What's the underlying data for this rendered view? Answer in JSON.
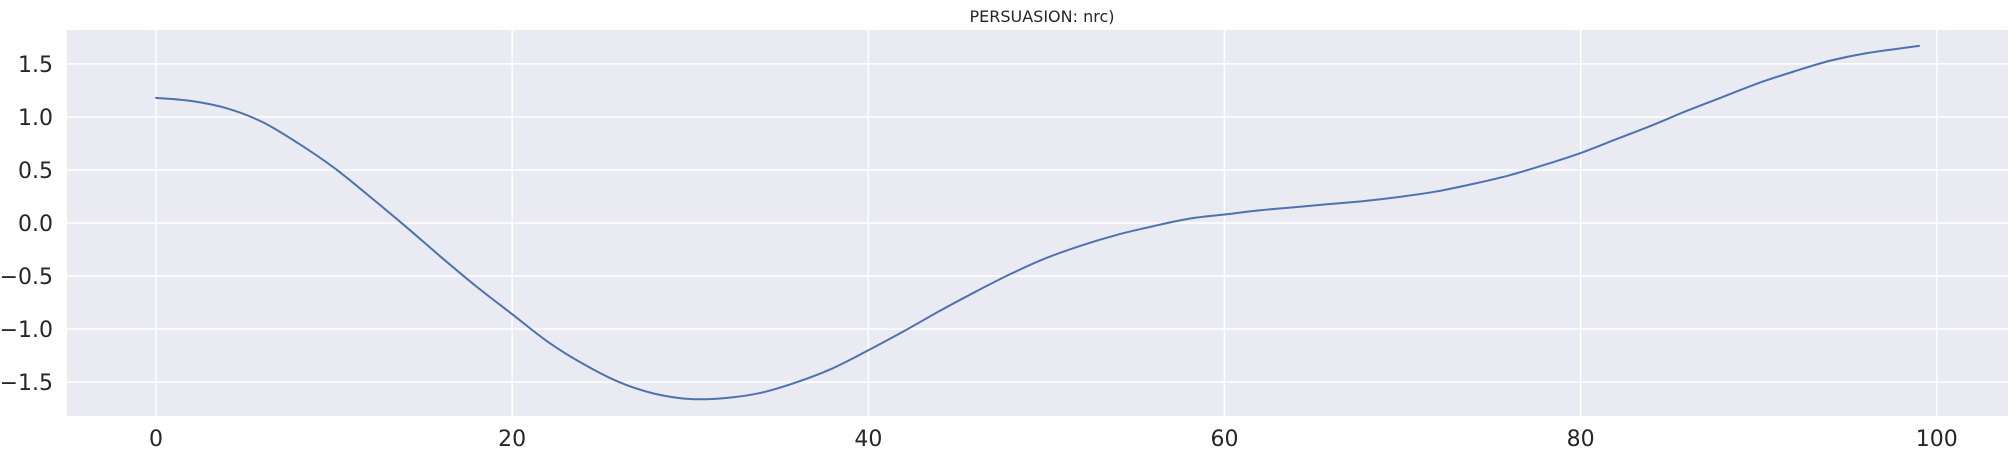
{
  "chart_data": {
    "type": "line",
    "title": "PERSUASION: nrc)",
    "xlabel": "",
    "ylabel": "",
    "xlim": [
      -5,
      104
    ],
    "ylim": [
      -1.82,
      1.82
    ],
    "x_ticks": [
      0,
      20,
      40,
      60,
      80,
      100
    ],
    "y_ticks": [
      -1.5,
      -1.0,
      -0.5,
      0.0,
      0.5,
      1.0,
      1.5
    ],
    "x_tick_labels": [
      "0",
      "20",
      "40",
      "60",
      "80",
      "100"
    ],
    "y_tick_labels": [
      "−1.5",
      "−1.0",
      "−0.5",
      "0.0",
      "0.5",
      "1.0",
      "1.5"
    ],
    "grid": true,
    "colors": {
      "background": "#eaeaf2",
      "grid": "#ffffff",
      "line": "#4c72b0"
    },
    "series": [
      {
        "x": [
          0,
          2,
          4,
          6,
          8,
          10,
          12,
          14,
          16,
          18,
          20,
          22,
          24,
          26,
          28,
          30,
          32,
          34,
          36,
          38,
          40,
          42,
          44,
          46,
          48,
          50,
          52,
          54,
          56,
          58,
          60,
          62,
          64,
          66,
          68,
          70,
          72,
          74,
          76,
          78,
          80,
          82,
          84,
          86,
          88,
          90,
          92,
          94,
          96,
          99
        ],
        "y": [
          1.18,
          1.15,
          1.08,
          0.95,
          0.75,
          0.52,
          0.25,
          -0.03,
          -0.32,
          -0.6,
          -0.86,
          -1.12,
          -1.33,
          -1.5,
          -1.61,
          -1.66,
          -1.65,
          -1.6,
          -1.5,
          -1.37,
          -1.2,
          -1.02,
          -0.83,
          -0.65,
          -0.48,
          -0.33,
          -0.21,
          -0.11,
          -0.03,
          0.04,
          0.08,
          0.12,
          0.15,
          0.18,
          0.21,
          0.25,
          0.3,
          0.37,
          0.45,
          0.55,
          0.66,
          0.79,
          0.92,
          1.06,
          1.19,
          1.32,
          1.43,
          1.53,
          1.6,
          1.67
        ]
      }
    ]
  }
}
